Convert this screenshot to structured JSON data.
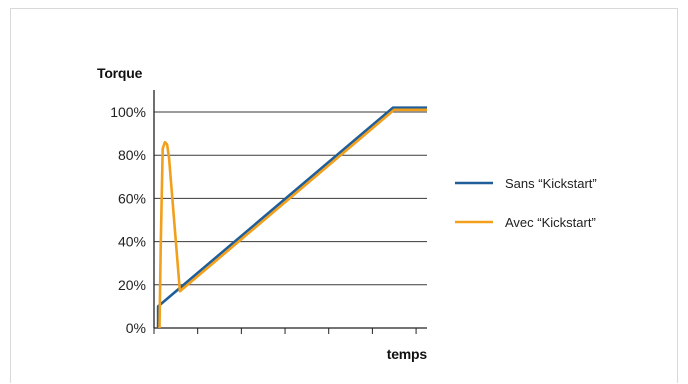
{
  "chart_data": {
    "type": "line",
    "ylabel": "Torque",
    "xlabel": "temps",
    "ylim": [
      0,
      100
    ],
    "xlim": [
      0,
      100
    ],
    "yticks": [
      {
        "value": 0,
        "label": "0%"
      },
      {
        "value": 20,
        "label": "20%"
      },
      {
        "value": 40,
        "label": "40%"
      },
      {
        "value": 60,
        "label": "60%"
      },
      {
        "value": 80,
        "label": "80%"
      },
      {
        "value": 100,
        "label": "100%"
      }
    ],
    "xticks": [
      0,
      16,
      32,
      48,
      64,
      80,
      96
    ],
    "grid": true,
    "legend_position": "right",
    "series": [
      {
        "name": "Sans “Kickstart”",
        "color": "#1f5e99",
        "points": [
          [
            1.5,
            0
          ],
          [
            1.5,
            10
          ],
          [
            87.5,
            102
          ],
          [
            100,
            102
          ]
        ]
      },
      {
        "name": "Avec “Kickstart”",
        "color": "#f2a01c",
        "points": [
          [
            2.0,
            0
          ],
          [
            2.5,
            40
          ],
          [
            3.2,
            83
          ],
          [
            4.0,
            86
          ],
          [
            4.8,
            85
          ],
          [
            5.5,
            79
          ],
          [
            9.5,
            17
          ],
          [
            88.0,
            101
          ],
          [
            100,
            101
          ]
        ]
      }
    ]
  }
}
